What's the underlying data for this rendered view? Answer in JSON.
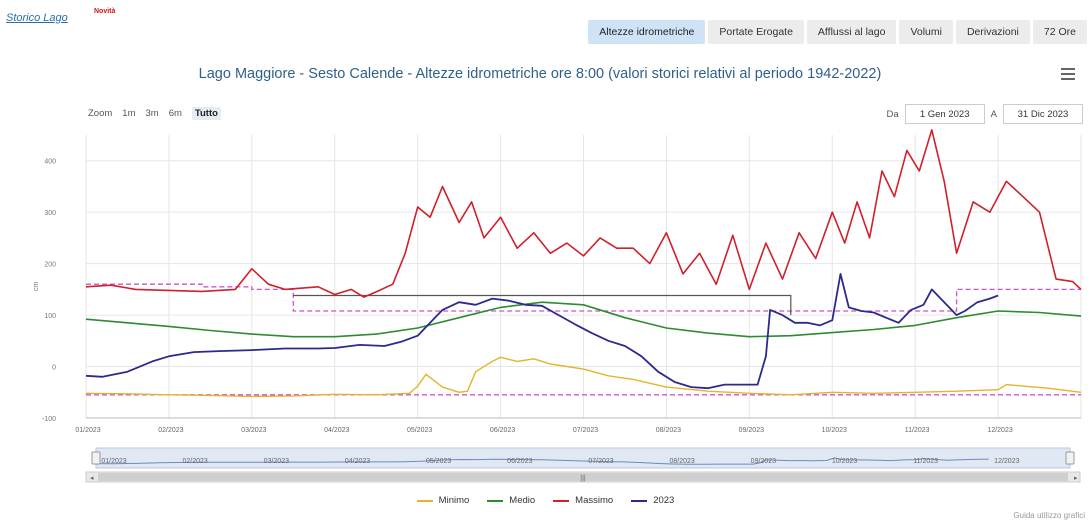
{
  "header": {
    "storico_label": "Storico Lago",
    "novita_badge": "Novità",
    "tabs": [
      {
        "label": "Altezze idrometriche",
        "active": true
      },
      {
        "label": "Portate Erogate",
        "active": false
      },
      {
        "label": "Afflussi al lago",
        "active": false
      },
      {
        "label": "Volumi",
        "active": false
      },
      {
        "label": "Derivazioni",
        "active": false
      },
      {
        "label": "72 Ore",
        "active": false
      }
    ]
  },
  "zoom": {
    "label": "Zoom",
    "options": [
      "1m",
      "3m",
      "6m",
      "Tutto"
    ],
    "selected": "Tutto"
  },
  "range": {
    "from_label": "Da",
    "from_value": "1 Gen 2023",
    "to_label": "A",
    "to_value": "31 Dic 2023"
  },
  "footer": {
    "guide_label": "Guida utilizzo grafici"
  },
  "colors": {
    "minimo": "#e6b32c",
    "medio": "#2e8b30",
    "massimo": "#d0202c",
    "y2023": "#2c2a8c",
    "reference": "#cc55cc",
    "flatline": "#555555",
    "grid": "#e6e6e6",
    "navigator": "#e0e8f4"
  },
  "chart_data": {
    "type": "line",
    "title": "Lago Maggiore - Sesto Calende - Altezze idrometriche ore 8:00 (valori storici relativi al periodo 1942-2022)",
    "ylabel": "cm",
    "ylim": [
      -100,
      450
    ],
    "yticks": [
      -100,
      0,
      100,
      200,
      300,
      400
    ],
    "x_categories": [
      "01/2023",
      "02/2023",
      "03/2023",
      "04/2023",
      "05/2023",
      "06/2023",
      "07/2023",
      "08/2023",
      "09/2023",
      "10/2023",
      "11/2023",
      "12/2023"
    ],
    "x_unit": "month index (0 = 1 Jan 2023, 12 = 31 Dec 2023)",
    "grid": true,
    "legend_position": "bottom",
    "series": [
      {
        "name": "Minimo",
        "color": "#e6b32c",
        "x": [
          0,
          0.5,
          1,
          1.5,
          2,
          2.5,
          3,
          3.5,
          3.9,
          4.0,
          4.1,
          4.3,
          4.5,
          4.6,
          4.7,
          4.9,
          5.0,
          5.2,
          5.4,
          5.6,
          5.8,
          6.0,
          6.3,
          6.6,
          7.0,
          7.5,
          8.0,
          8.5,
          9.0,
          9.5,
          10.0,
          10.5,
          11.0,
          11.1,
          11.3,
          11.6,
          12
        ],
        "y": [
          -52,
          -53,
          -55,
          -56,
          -58,
          -57,
          -54,
          -55,
          -52,
          -38,
          -15,
          -40,
          -50,
          -48,
          -10,
          10,
          18,
          10,
          15,
          5,
          0,
          -5,
          -18,
          -25,
          -40,
          -48,
          -52,
          -55,
          -50,
          -52,
          -50,
          -48,
          -45,
          -35,
          -38,
          -42,
          -50
        ]
      },
      {
        "name": "Medio",
        "color": "#2e8b30",
        "x": [
          0,
          0.5,
          1,
          1.5,
          2,
          2.5,
          3,
          3.5,
          4,
          4.5,
          5,
          5.5,
          6,
          6.5,
          7,
          7.5,
          8,
          8.5,
          9,
          9.5,
          10,
          10.5,
          11,
          11.5,
          12
        ],
        "y": [
          92,
          85,
          78,
          70,
          63,
          58,
          58,
          63,
          75,
          95,
          115,
          125,
          120,
          95,
          75,
          65,
          58,
          60,
          66,
          72,
          80,
          95,
          108,
          105,
          98
        ]
      },
      {
        "name": "Massimo",
        "color": "#d0202c",
        "x": [
          0,
          0.3,
          0.6,
          1.0,
          1.4,
          1.8,
          2.0,
          2.2,
          2.4,
          2.8,
          3.0,
          3.2,
          3.35,
          3.5,
          3.7,
          3.85,
          4.0,
          4.15,
          4.3,
          4.5,
          4.65,
          4.8,
          5.0,
          5.2,
          5.4,
          5.6,
          5.8,
          6.0,
          6.2,
          6.4,
          6.6,
          6.8,
          7.0,
          7.2,
          7.4,
          7.6,
          7.8,
          8.0,
          8.2,
          8.4,
          8.6,
          8.8,
          9.0,
          9.15,
          9.3,
          9.45,
          9.6,
          9.75,
          9.9,
          10.05,
          10.2,
          10.35,
          10.5,
          10.7,
          10.9,
          11.1,
          11.3,
          11.5,
          11.7,
          11.9,
          12
        ],
        "y": [
          155,
          158,
          150,
          148,
          146,
          150,
          190,
          160,
          150,
          155,
          140,
          150,
          135,
          145,
          160,
          220,
          310,
          290,
          350,
          280,
          320,
          250,
          290,
          230,
          260,
          220,
          240,
          215,
          250,
          230,
          230,
          200,
          260,
          180,
          220,
          160,
          255,
          150,
          240,
          170,
          260,
          210,
          300,
          240,
          320,
          250,
          380,
          330,
          420,
          380,
          460,
          360,
          220,
          320,
          300,
          360,
          330,
          300,
          170,
          165,
          150
        ]
      },
      {
        "name": "2023",
        "color": "#2c2a8c",
        "x": [
          0,
          0.2,
          0.5,
          0.8,
          1.0,
          1.3,
          1.6,
          2.0,
          2.4,
          2.8,
          3.0,
          3.3,
          3.6,
          3.8,
          4.0,
          4.15,
          4.3,
          4.5,
          4.7,
          4.9,
          5.1,
          5.3,
          5.5,
          5.7,
          5.9,
          6.1,
          6.3,
          6.5,
          6.7,
          6.9,
          7.1,
          7.3,
          7.5,
          7.7,
          7.9,
          8.1,
          8.2,
          8.25,
          8.4,
          8.55,
          8.7,
          8.85,
          9.0,
          9.1,
          9.2,
          9.35,
          9.5,
          9.65,
          9.8,
          9.95,
          10.1,
          10.2,
          10.35,
          10.5,
          10.6,
          10.75,
          10.9,
          11.0
        ],
        "y": [
          -18,
          -20,
          -10,
          10,
          20,
          28,
          30,
          32,
          35,
          35,
          36,
          42,
          40,
          48,
          60,
          85,
          110,
          125,
          120,
          132,
          128,
          120,
          118,
          100,
          82,
          65,
          50,
          40,
          20,
          -10,
          -30,
          -40,
          -42,
          -35,
          -35,
          -35,
          20,
          110,
          100,
          85,
          85,
          80,
          90,
          180,
          115,
          108,
          105,
          95,
          85,
          110,
          120,
          150,
          125,
          100,
          108,
          125,
          132,
          138
        ]
      }
    ],
    "reference_lines": [
      {
        "name": "dashed-reference-min",
        "color": "#cc55cc",
        "style": "dashed",
        "points": [
          [
            0,
            -55
          ],
          [
            12,
            -55
          ]
        ]
      },
      {
        "name": "dashed-reference-upper",
        "color": "#cc55cc",
        "style": "dashed",
        "points": [
          [
            0,
            160
          ],
          [
            1.4,
            160
          ],
          [
            1.4,
            155
          ],
          [
            2.0,
            155
          ],
          [
            2.0,
            150
          ],
          [
            2.5,
            150
          ],
          [
            2.5,
            108
          ],
          [
            10.5,
            108
          ],
          [
            10.5,
            150
          ],
          [
            12,
            150
          ]
        ]
      },
      {
        "name": "flat-reference",
        "color": "#555555",
        "style": "solid",
        "points": [
          [
            2.5,
            138
          ],
          [
            8.5,
            138
          ],
          [
            8.5,
            100
          ]
        ]
      }
    ],
    "navigator": {
      "labels": [
        "01/2023",
        "02/2023",
        "03/2023",
        "04/2023",
        "05/2023",
        "06/2023",
        "07/2023",
        "08/2023",
        "09/2023",
        "10/2023",
        "11/2023",
        "12/2023"
      ]
    }
  }
}
